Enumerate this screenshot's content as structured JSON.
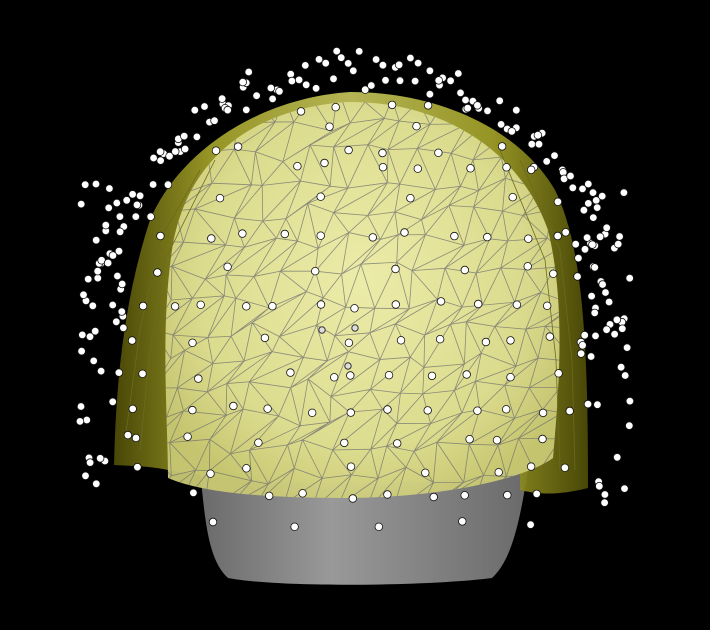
{
  "scene": {
    "background_color": "#000000",
    "head_color": "#8c8c8c",
    "scalp_color": "#e3e39a",
    "scalp_alpha": 0.82,
    "cap_color": "#8f8e1e",
    "mesh_color": "#6f6f6f",
    "sensor_fill": "#ffffff",
    "sensor_stroke": "#111111"
  }
}
